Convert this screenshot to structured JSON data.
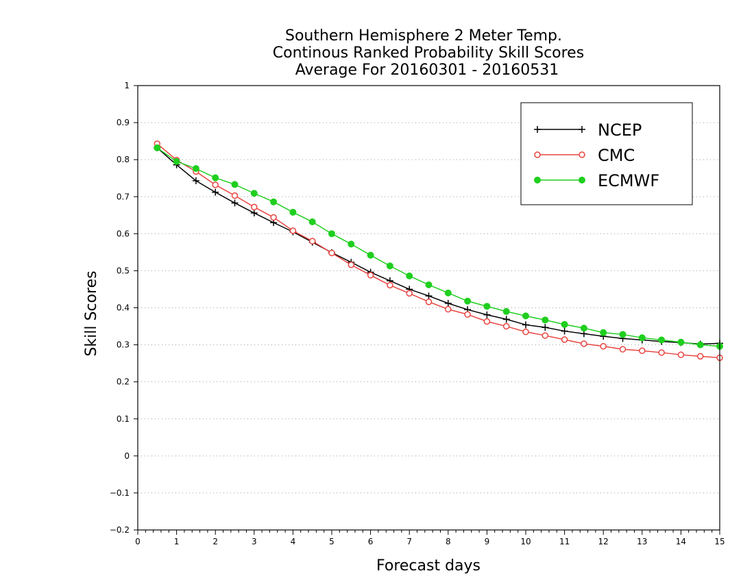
{
  "chart_data": {
    "type": "line",
    "title_lines": [
      "Southern Hemisphere 2 Meter Temp.",
      "Continous Ranked Probability Skill Scores",
      "Average For 20160301 - 20160531"
    ],
    "xlabel": "Forecast days",
    "ylabel": "Skill Scores",
    "xlim": [
      0,
      15
    ],
    "ylim": [
      -0.2,
      1
    ],
    "xticks": [
      0,
      1,
      2,
      3,
      4,
      5,
      6,
      7,
      8,
      9,
      10,
      11,
      12,
      13,
      14,
      15
    ],
    "xtick_labels": [
      "0",
      "1",
      "2",
      "3",
      "4",
      "5",
      "6",
      "7",
      "8",
      "9",
      "10",
      "11",
      "12",
      "13",
      "14",
      "15"
    ],
    "yticks": [
      -0.2,
      -0.1,
      0,
      0.1,
      0.2,
      0.3,
      0.4,
      0.5,
      0.6,
      0.7,
      0.8,
      0.9,
      1
    ],
    "ytick_labels": [
      "−0.2",
      "−0.1",
      "0",
      "0.1",
      "0.2",
      "0.3",
      "0.4",
      "0.5",
      "0.6",
      "0.7",
      "0.8",
      "0.9",
      "1"
    ],
    "grid": "horizontal dotted",
    "legend_position": "top-right",
    "x": [
      0.5,
      1,
      1.5,
      2,
      2.5,
      3,
      3.5,
      4,
      4.5,
      5,
      5.5,
      6,
      6.5,
      7,
      7.5,
      8,
      8.5,
      9,
      9.5,
      10,
      10.5,
      11,
      11.5,
      12,
      12.5,
      13,
      13.5,
      14,
      14.5,
      15
    ],
    "series": [
      {
        "name": "NCEP",
        "color": "#000000",
        "marker": "plus",
        "values": [
          0.832,
          0.786,
          0.743,
          0.712,
          0.683,
          0.656,
          0.63,
          0.605,
          0.577,
          0.549,
          0.523,
          0.496,
          0.473,
          0.45,
          0.432,
          0.412,
          0.395,
          0.381,
          0.369,
          0.354,
          0.347,
          0.337,
          0.33,
          0.323,
          0.317,
          0.313,
          0.309,
          0.306,
          0.302,
          0.304
        ]
      },
      {
        "name": "CMC",
        "color": "#e8433f",
        "marker": "open-circle",
        "values": [
          0.843,
          0.799,
          0.768,
          0.732,
          0.703,
          0.672,
          0.644,
          0.608,
          0.58,
          0.548,
          0.516,
          0.488,
          0.461,
          0.439,
          0.416,
          0.396,
          0.382,
          0.363,
          0.35,
          0.335,
          0.325,
          0.314,
          0.303,
          0.296,
          0.288,
          0.284,
          0.279,
          0.273,
          0.269,
          0.265
        ]
      },
      {
        "name": "ECMWF",
        "color": "#1fcf1f",
        "marker": "filled-circle",
        "values": [
          0.832,
          0.795,
          0.776,
          0.751,
          0.733,
          0.709,
          0.686,
          0.658,
          0.632,
          0.6,
          0.572,
          0.542,
          0.513,
          0.486,
          0.462,
          0.44,
          0.418,
          0.404,
          0.39,
          0.378,
          0.367,
          0.355,
          0.345,
          0.333,
          0.328,
          0.319,
          0.313,
          0.307,
          0.3,
          0.296
        ]
      }
    ]
  }
}
